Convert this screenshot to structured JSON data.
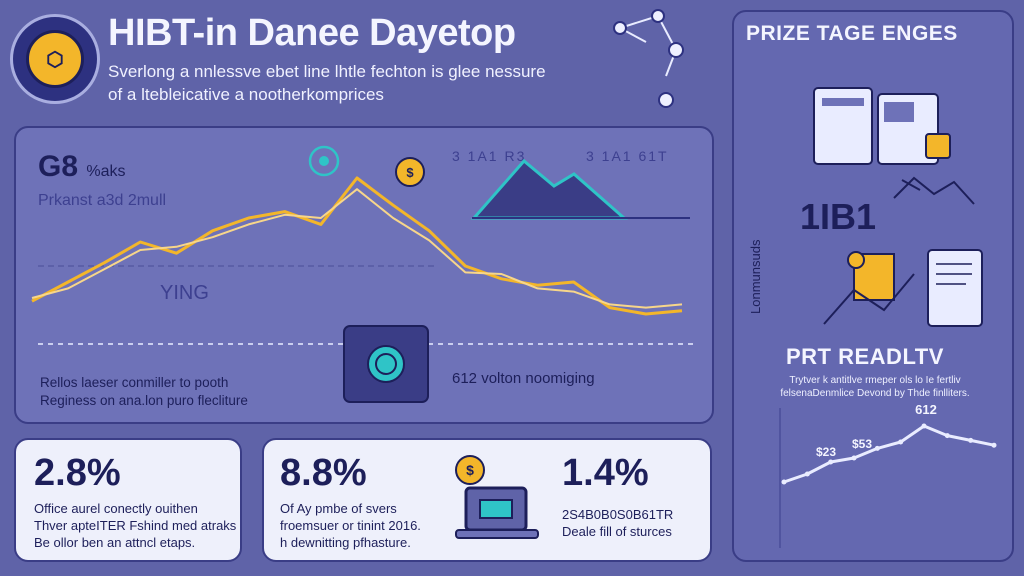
{
  "header": {
    "title": "HIBT-in Danee Dayetop",
    "subtitle_line1": "Sverlong a nnlessve ebet line lhtle fechton is glee nessure",
    "subtitle_line2": "of a ltebleicative a nootherkomprices"
  },
  "main_panel": {
    "big_label": "G8",
    "big_label_suffix": "%aks",
    "faded_label": "Prkanst a3d 2mull",
    "faded_mid": "YING",
    "top_code_left": "3 1A1 R3",
    "top_code_right": "3 1A1 61T",
    "caption_left_line1": "Rellos laeser conmiller to pooth",
    "caption_left_line2": "Reginess on ana.lon puro flecliture",
    "caption_right": "612 volton noomiging"
  },
  "stats": [
    {
      "value": "2.8%",
      "desc_line1": "Office aurel conectly ouithen",
      "desc_line2": "Thver apteITER Fshind med atraks",
      "desc_line3": "Be ollor ben an attncl etaps."
    },
    {
      "value": "8.8%",
      "desc_line1": "Of Ay pmbe of svers",
      "desc_line2": "froemsuer or tinint 2016.",
      "desc_line3": "h dewnitting pfhasture."
    },
    {
      "value": "1.4%",
      "desc_line1": "2S4B0B0S0B61TR",
      "desc_line2": "Deale fill of sturces"
    }
  ],
  "sidebar": {
    "heading": "PRIZE TAGE ENGES",
    "big_code": "1IB1",
    "vertical_label": "Lonmunsuds",
    "heading2": "PRT READLTV",
    "text_line1": "Trytver k antitlve rmeper ols lo Ie fertliv",
    "text_line2": "felsenaDenmlice Devond by Thde finlliters.",
    "peak_label": "612",
    "point_label1": "$23",
    "point_label2": "$53"
  },
  "colors": {
    "background": "#5f63a8",
    "panel": "#6e72b8",
    "light_panel": "#eef0fb",
    "line_gold": "#f3b62a",
    "line_teal": "#2fc4c7",
    "dark_navy": "#1d1f5a"
  },
  "icons": [
    "hexagon-logo-icon",
    "coin-icon",
    "target-icon",
    "laptop-icon",
    "dollar-coin-icon",
    "molecule-icon",
    "chip-icon"
  ],
  "chart_data": [
    {
      "type": "line",
      "title": "",
      "xlabel": "",
      "ylabel": "",
      "grid": true,
      "series": [
        {
          "values": [
            18,
            30,
            42,
            55,
            48,
            62,
            70,
            74,
            66,
            95,
            78,
            62,
            40,
            32,
            28,
            30,
            14,
            10,
            12
          ]
        },
        {
          "values": [
            20,
            26,
            38,
            50,
            52,
            58,
            66,
            72,
            70,
            88,
            70,
            56,
            36,
            35,
            26,
            24,
            16,
            14,
            16
          ]
        }
      ],
      "ylim": [
        0,
        100
      ]
    },
    {
      "type": "line",
      "series": [
        {
          "values": [
            20,
            30,
            45,
            50,
            62,
            70,
            90,
            78,
            72,
            66
          ]
        }
      ],
      "ylim": [
        0,
        100
      ]
    }
  ]
}
